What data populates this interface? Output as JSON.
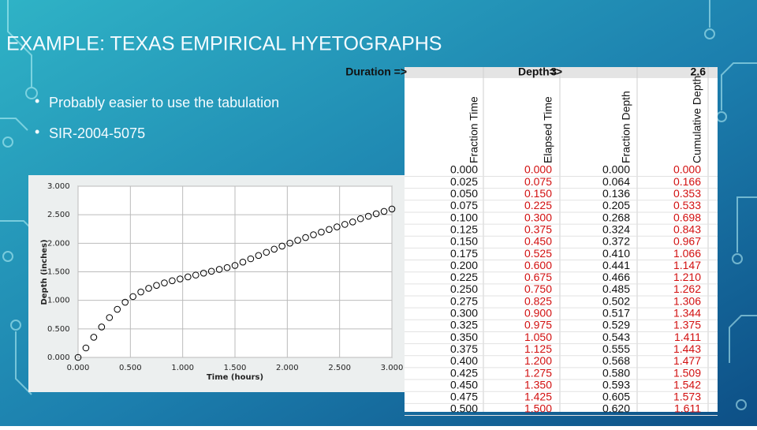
{
  "title": "EXAMPLE: TEXAS EMPIRICAL HYETOGRAPHS",
  "bullets": [
    "Probably easier to use the tabulation",
    "SIR-2004-5075"
  ],
  "chart_data": {
    "type": "scatter",
    "xlabel": "Time (hours)",
    "ylabel": "Depth (inches)",
    "x": [
      0,
      0.075,
      0.15,
      0.225,
      0.3,
      0.375,
      0.45,
      0.525,
      0.6,
      0.675,
      0.75,
      0.825,
      0.9,
      0.975,
      1.05,
      1.125,
      1.2,
      1.275,
      1.35,
      1.425,
      1.5,
      1.575,
      1.65,
      1.725,
      1.8,
      1.875,
      1.95,
      2.025,
      2.1,
      2.175,
      2.25,
      2.325,
      2.4,
      2.475,
      2.55,
      2.625,
      2.7,
      2.775,
      2.85,
      2.925,
      3.0
    ],
    "values": [
      0,
      0.166,
      0.353,
      0.533,
      0.698,
      0.843,
      0.967,
      1.066,
      1.147,
      1.21,
      1.262,
      1.306,
      1.344,
      1.375,
      1.411,
      1.443,
      1.477,
      1.509,
      1.542,
      1.573,
      1.611,
      1.67,
      1.728,
      1.786,
      1.842,
      1.897,
      1.95,
      2.002,
      2.052,
      2.101,
      2.149,
      2.196,
      2.242,
      2.287,
      2.331,
      2.374,
      2.43,
      2.474,
      2.517,
      2.559,
      2.6
    ],
    "color": "#000000",
    "xlim": [
      0,
      3
    ],
    "ylim": [
      0,
      3
    ],
    "xticks": [
      {
        "value": 0,
        "label": "0.000"
      },
      {
        "value": 0.5,
        "label": "0.500"
      },
      {
        "value": 1,
        "label": "1.000"
      },
      {
        "value": 1.5,
        "label": "1.500"
      },
      {
        "value": 2,
        "label": "2.000"
      },
      {
        "value": 2.5,
        "label": "2.500"
      },
      {
        "value": 3,
        "label": "3.000"
      }
    ],
    "yticks": [
      {
        "value": 0,
        "label": "0.000"
      },
      {
        "value": 0.5,
        "label": "0.500"
      },
      {
        "value": 1,
        "label": "1.000"
      },
      {
        "value": 1.5,
        "label": "1.500"
      },
      {
        "value": 2,
        "label": "2.000"
      },
      {
        "value": 2.5,
        "label": "2.500"
      },
      {
        "value": 3,
        "label": "3.000"
      }
    ],
    "grid": true
  },
  "table": {
    "header": [
      "Duration =>",
      "3",
      "Depth=>",
      "2.6"
    ],
    "columns": [
      "Fraction Time",
      "Elapsed Time",
      "Fraction Depth",
      "Cumulative Depth"
    ],
    "rows": [
      [
        "0.000",
        "0.000",
        "0.000",
        "0.000"
      ],
      [
        "0.025",
        "0.075",
        "0.064",
        "0.166"
      ],
      [
        "0.050",
        "0.150",
        "0.136",
        "0.353"
      ],
      [
        "0.075",
        "0.225",
        "0.205",
        "0.533"
      ],
      [
        "0.100",
        "0.300",
        "0.268",
        "0.698"
      ],
      [
        "0.125",
        "0.375",
        "0.324",
        "0.843"
      ],
      [
        "0.150",
        "0.450",
        "0.372",
        "0.967"
      ],
      [
        "0.175",
        "0.525",
        "0.410",
        "1.066"
      ],
      [
        "0.200",
        "0.600",
        "0.441",
        "1.147"
      ],
      [
        "0.225",
        "0.675",
        "0.466",
        "1.210"
      ],
      [
        "0.250",
        "0.750",
        "0.485",
        "1.262"
      ],
      [
        "0.275",
        "0.825",
        "0.502",
        "1.306"
      ],
      [
        "0.300",
        "0.900",
        "0.517",
        "1.344"
      ],
      [
        "0.325",
        "0.975",
        "0.529",
        "1.375"
      ],
      [
        "0.350",
        "1.050",
        "0.543",
        "1.411"
      ],
      [
        "0.375",
        "1.125",
        "0.555",
        "1.443"
      ],
      [
        "0.400",
        "1.200",
        "0.568",
        "1.477"
      ],
      [
        "0.425",
        "1.275",
        "0.580",
        "1.509"
      ],
      [
        "0.450",
        "1.350",
        "0.593",
        "1.542"
      ],
      [
        "0.475",
        "1.425",
        "0.605",
        "1.573"
      ],
      [
        "0.500",
        "1.500",
        "0.620",
        "1.611"
      ]
    ]
  }
}
